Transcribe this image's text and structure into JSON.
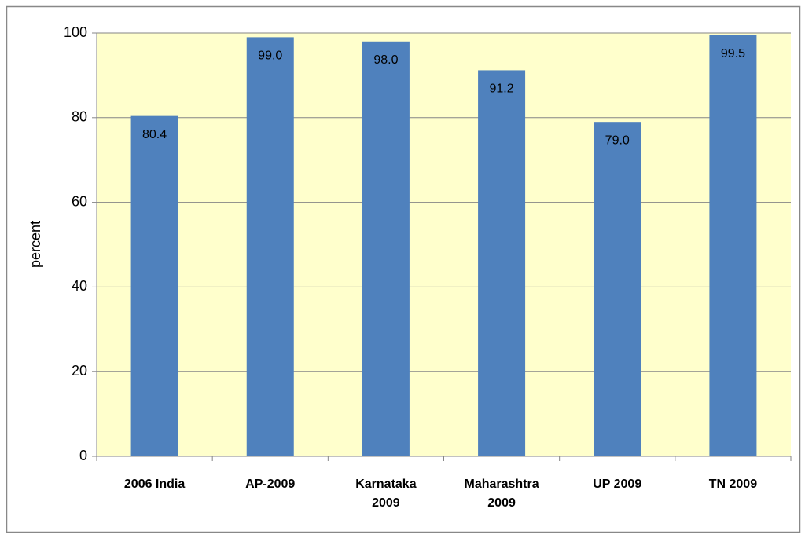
{
  "chart_data": {
    "type": "bar",
    "y_label": "percent",
    "categories": [
      "2006 India",
      "AP-2009",
      "Karnataka\n2009",
      "Maharashtra\n2009",
      "UP 2009",
      "TN 2009"
    ],
    "values": [
      80.4,
      99.0,
      98.0,
      91.2,
      79.0,
      99.5
    ],
    "value_labels": [
      "80.4",
      "99.0",
      "98.0",
      "91.2",
      "79.0",
      "99.5"
    ],
    "color": "#4f81bd",
    "background": "#ffffcc",
    "ylim": [
      0,
      100
    ],
    "yticks": [
      0,
      20,
      40,
      60,
      80,
      100
    ],
    "grid": true
  }
}
